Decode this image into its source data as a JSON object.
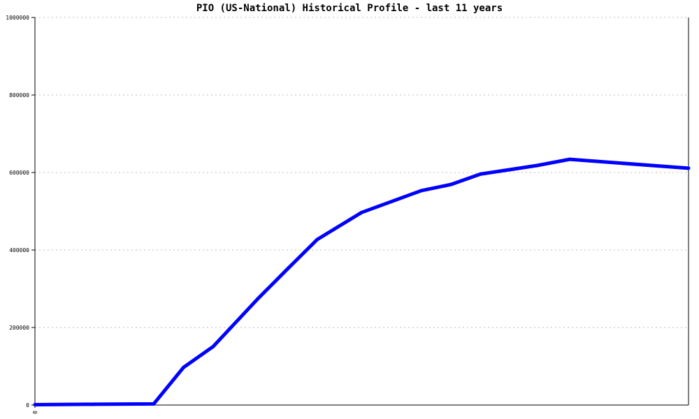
{
  "chart_data": {
    "type": "line",
    "title": "PIO (US-National) Historical Profile - last 11 years",
    "xlabel": "",
    "ylabel": "",
    "ylim": [
      0,
      1000000
    ],
    "xlim": [
      0,
      11
    ],
    "yticks": [
      "0",
      "200000",
      "400000",
      "600000",
      "800000",
      "1000000"
    ],
    "xticks": [
      "0"
    ],
    "grid": "horizontal dotted",
    "line_color": "#0000ff",
    "series": [
      {
        "x": [
          0,
          1.0,
          2.0,
          2.5,
          3.0,
          3.75,
          4.25,
          4.75,
          5.5,
          6.5,
          7.0,
          7.5,
          8.45,
          9.0,
          11.0
        ],
        "values": [
          1000,
          2000,
          3000,
          97000,
          151000,
          274000,
          351000,
          427000,
          497000,
          553000,
          569000,
          596000,
          618000,
          634000,
          611000
        ]
      }
    ]
  }
}
